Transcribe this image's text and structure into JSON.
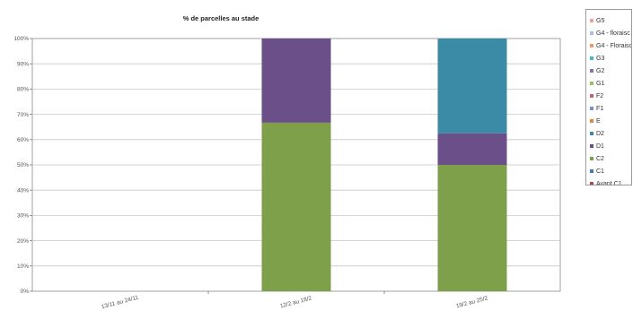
{
  "chart_data": {
    "type": "bar",
    "stacked": true,
    "title": "% de parcelles au stade",
    "categories": [
      "13/11 au 24/11",
      "12/2 au 18/2",
      "19/2 au 25/2"
    ],
    "y_ticks": [
      "0%",
      "10%",
      "20%",
      "30%",
      "40%",
      "50%",
      "60%",
      "70%",
      "80%",
      "90%",
      "100%"
    ],
    "ylim": [
      0,
      100
    ],
    "grid": true,
    "legend_position": "right",
    "series": [
      {
        "name": "Avant C1",
        "color": "#b04a4a",
        "values": [
          0,
          0,
          0
        ]
      },
      {
        "name": "C1",
        "color": "#4a78b8",
        "values": [
          0,
          0,
          0
        ]
      },
      {
        "name": "C2",
        "color": "#7fa04a",
        "values": [
          0,
          66.7,
          50
        ]
      },
      {
        "name": "D1",
        "color": "#6a4f88",
        "values": [
          0,
          33.3,
          12.5
        ]
      },
      {
        "name": "D2",
        "color": "#3b8aa6",
        "values": [
          0,
          0,
          37.5
        ]
      },
      {
        "name": "E",
        "color": "#e08a35",
        "values": [
          0,
          0,
          0
        ]
      },
      {
        "name": "F1",
        "color": "#6f93d0",
        "values": [
          0,
          0,
          0
        ]
      },
      {
        "name": "F2",
        "color": "#d45e5e",
        "values": [
          0,
          0,
          0
        ]
      },
      {
        "name": "G1",
        "color": "#9ac15a",
        "values": [
          0,
          0,
          0
        ]
      },
      {
        "name": "G2",
        "color": "#8a74b0",
        "values": [
          0,
          0,
          0
        ]
      },
      {
        "name": "G3",
        "color": "#40b8c8",
        "values": [
          0,
          0,
          0
        ]
      },
      {
        "name": "G4 - Floraisc",
        "color": "#f0a050",
        "values": [
          0,
          0,
          0
        ]
      },
      {
        "name": "G4 - floraisc",
        "color": "#a8c0e8",
        "values": [
          0,
          0,
          0
        ]
      },
      {
        "name": "G5",
        "color": "#e8a0a0",
        "values": [
          0,
          0,
          0
        ]
      }
    ]
  }
}
